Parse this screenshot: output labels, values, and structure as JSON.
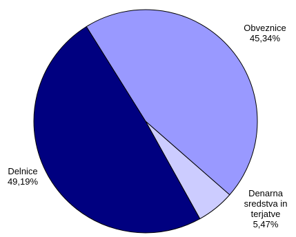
{
  "chart_data": {
    "type": "pie",
    "title": "",
    "slices": [
      {
        "label": "Obveznice",
        "label_lines": [
          "Obveznice"
        ],
        "value": 45.34,
        "value_text": "45,34%",
        "color": "#9999ff"
      },
      {
        "label": "Denarna sredstva in terjatve",
        "label_lines": [
          "Denarna",
          "sredstva in",
          "terjatve"
        ],
        "value": 5.47,
        "value_text": "5,47%",
        "color": "#ccccff"
      },
      {
        "label": "Delnice",
        "label_lines": [
          "Delnice"
        ],
        "value": 49.19,
        "value_text": "49,19%",
        "color": "#000080"
      }
    ],
    "legend": "none"
  }
}
